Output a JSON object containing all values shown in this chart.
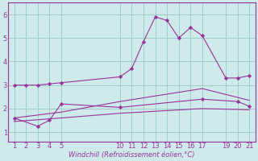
{
  "bg_color": "#ceeaea",
  "grid_color": "#9fcccc",
  "line_color": "#993399",
  "xlabel": "Windchill (Refroidissement éolien,°C)",
  "xlim": [
    0.5,
    21.5
  ],
  "ylim": [
    0.6,
    6.5
  ],
  "yticks": [
    1,
    2,
    3,
    4,
    5,
    6
  ],
  "xtick_positions": [
    1,
    2,
    3,
    4,
    5,
    10,
    11,
    12,
    13,
    14,
    15,
    16,
    17,
    19,
    20,
    21
  ],
  "xtick_labels": [
    "1",
    "2",
    "3",
    "4",
    "5",
    "10",
    "11",
    "12",
    "13",
    "14",
    "15",
    "16",
    "17",
    "19",
    "20",
    "21"
  ],
  "lines": [
    {
      "x": [
        1,
        2,
        3,
        4,
        5,
        10,
        11,
        12,
        13,
        14,
        15,
        16,
        17,
        19,
        20,
        21
      ],
      "y": [
        3.0,
        3.0,
        3.0,
        3.05,
        3.1,
        3.35,
        3.7,
        4.85,
        5.9,
        5.75,
        5.0,
        5.45,
        5.1,
        3.3,
        3.3,
        3.4
      ],
      "marker": true
    },
    {
      "x": [
        1,
        5,
        10,
        17,
        21
      ],
      "y": [
        1.6,
        1.85,
        2.3,
        2.85,
        2.35
      ],
      "marker": false
    },
    {
      "x": [
        1,
        3,
        4,
        5,
        10,
        17,
        20,
        21
      ],
      "y": [
        1.6,
        1.25,
        1.5,
        2.2,
        2.05,
        2.4,
        2.3,
        2.1
      ],
      "marker": true
    },
    {
      "x": [
        1,
        5,
        10,
        17,
        21
      ],
      "y": [
        1.45,
        1.6,
        1.8,
        2.0,
        1.95
      ],
      "marker": false
    }
  ]
}
